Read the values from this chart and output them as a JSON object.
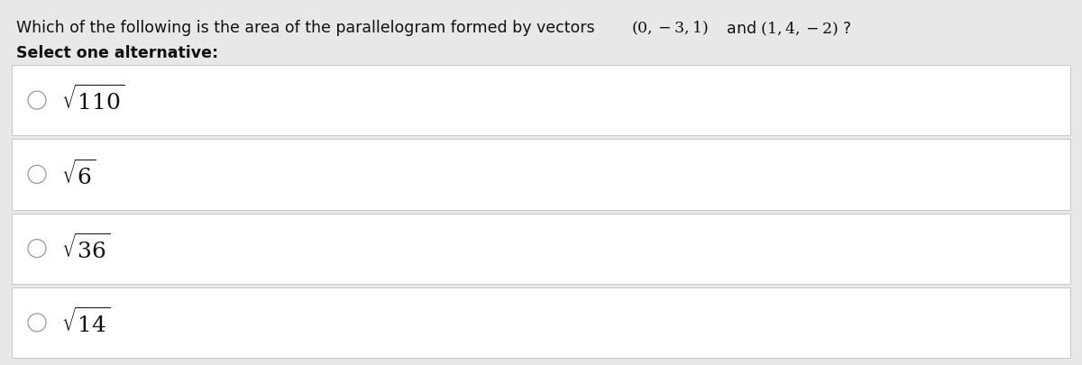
{
  "background_color": "#e8e8e8",
  "panel_color": "#ffffff",
  "question_text": "Which of the following is the area of the parallelogram formed by vectors",
  "select_text": "Select one alternative:",
  "title_fontsize": 12.5,
  "option_fontsize": 18,
  "text_color": "#111111",
  "border_color": "#c8c8c8",
  "circle_color": "#999999",
  "fig_width": 12.0,
  "fig_height": 4.05,
  "dpi": 100
}
